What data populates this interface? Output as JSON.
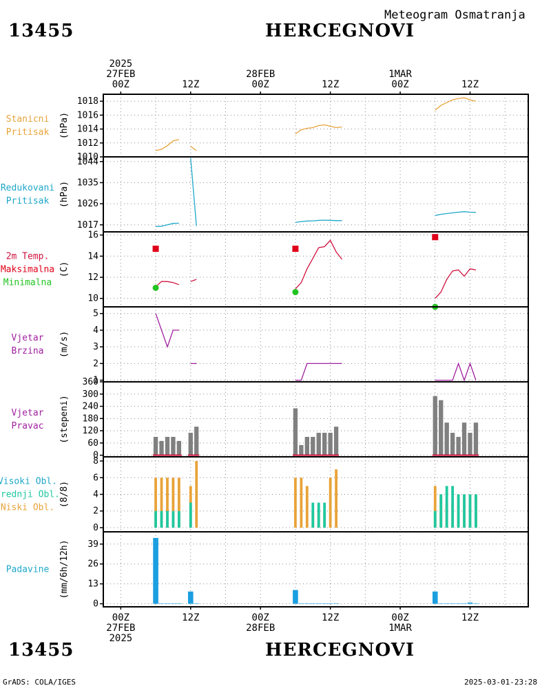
{
  "header": {
    "station_id": "13455",
    "station_name": "HERCEGNOVI",
    "product": "Meteogram Osmatranja"
  },
  "footer": {
    "left": "GrADS: COLA/IGES",
    "right": "2025-03-01-23:28"
  },
  "time_axis": {
    "labels_top": [
      {
        "h": 0,
        "lines": [
          "2025",
          "27FEB",
          "00Z"
        ]
      },
      {
        "h": 12,
        "lines": [
          "12Z"
        ]
      },
      {
        "h": 24,
        "lines": [
          "28FEB",
          "00Z"
        ]
      },
      {
        "h": 36,
        "lines": [
          "12Z"
        ]
      },
      {
        "h": 48,
        "lines": [
          "1MAR",
          "00Z"
        ]
      },
      {
        "h": 60,
        "lines": [
          "12Z"
        ]
      }
    ],
    "labels_bottom": [
      {
        "h": 0,
        "lines": [
          "00Z",
          "27FEB",
          "2025"
        ]
      },
      {
        "h": 12,
        "lines": [
          "12Z"
        ]
      },
      {
        "h": 24,
        "lines": [
          "00Z",
          "28FEB"
        ]
      },
      {
        "h": 36,
        "lines": [
          "12Z"
        ]
      },
      {
        "h": 48,
        "lines": [
          "00Z",
          "1MAR"
        ]
      },
      {
        "h": 60,
        "lines": [
          "12Z"
        ]
      }
    ],
    "range_hours": [
      -3,
      70
    ]
  },
  "chart_data": [
    {
      "type": "line",
      "title_lines": [
        "Stanicni",
        "Pritisak"
      ],
      "title_colors": [
        "#e8a33a",
        "#e8a33a"
      ],
      "ylabel": "(hPa)",
      "ylim": [
        1010,
        1019
      ],
      "yticks": [
        1010,
        1012,
        1014,
        1016,
        1018
      ],
      "series": [
        {
          "color": "#e8a33a",
          "segments": [
            [
              [
                6,
                1010.9
              ],
              [
                7,
                1011.1
              ],
              [
                8,
                1011.6
              ],
              [
                9,
                1012.3
              ],
              [
                10,
                1012.5
              ]
            ],
            [
              [
                12,
                1011.5
              ],
              [
                13,
                1010.9
              ]
            ],
            [
              [
                30,
                1013.3
              ],
              [
                31,
                1013.9
              ],
              [
                32,
                1014.1
              ],
              [
                33,
                1014.2
              ],
              [
                34,
                1014.5
              ],
              [
                35,
                1014.6
              ],
              [
                36,
                1014.4
              ],
              [
                37,
                1014.2
              ],
              [
                38,
                1014.3
              ]
            ],
            [
              [
                54,
                1016.7
              ],
              [
                55,
                1017.4
              ],
              [
                56,
                1017.8
              ],
              [
                57,
                1018.2
              ],
              [
                58,
                1018.4
              ],
              [
                59,
                1018.5
              ],
              [
                60,
                1018.2
              ],
              [
                61,
                1018.0
              ]
            ]
          ]
        }
      ]
    },
    {
      "type": "line",
      "title_lines": [
        "Redukovani",
        "Pritisak"
      ],
      "title_colors": [
        "#1ea7c9",
        "#1ea7c9"
      ],
      "ylabel": "(hPa)",
      "ylim": [
        1014,
        1046
      ],
      "yticks": [
        1017,
        1026,
        1035,
        1044
      ],
      "series": [
        {
          "color": "#1ea7c9",
          "segments": [
            [
              [
                6,
                1016.3
              ],
              [
                7,
                1016.4
              ],
              [
                8,
                1017.0
              ],
              [
                9,
                1017.6
              ],
              [
                10,
                1017.7
              ]
            ],
            [
              [
                12,
                1045.5
              ],
              [
                13,
                1016.5
              ]
            ],
            [
              [
                30,
                1018.0
              ],
              [
                31,
                1018.4
              ],
              [
                32,
                1018.6
              ],
              [
                33,
                1018.7
              ],
              [
                34,
                1018.9
              ],
              [
                35,
                1019.0
              ],
              [
                36,
                1018.9
              ],
              [
                37,
                1018.8
              ],
              [
                38,
                1018.8
              ]
            ],
            [
              [
                54,
                1021.0
              ],
              [
                55,
                1021.5
              ],
              [
                56,
                1021.8
              ],
              [
                57,
                1022.1
              ],
              [
                58,
                1022.4
              ],
              [
                59,
                1022.6
              ],
              [
                60,
                1022.4
              ],
              [
                61,
                1022.3
              ]
            ]
          ]
        }
      ]
    },
    {
      "type": "line",
      "title_lines": [
        "2m Temp.",
        "Maksimalna",
        "Minimalna"
      ],
      "title_colors": [
        "#d0113f",
        "#e0001a",
        "#22c322"
      ],
      "ylabel": "(C)",
      "ylim": [
        9.2,
        16.3
      ],
      "yticks": [
        10,
        12,
        14,
        16
      ],
      "series": [
        {
          "color": "#d0113f",
          "segments": [
            [
              [
                6,
                11.1
              ],
              [
                7,
                11.6
              ],
              [
                8,
                11.6
              ],
              [
                9,
                11.5
              ],
              [
                10,
                11.3
              ]
            ],
            [
              [
                12,
                11.6
              ],
              [
                13,
                11.8
              ]
            ],
            [
              [
                30,
                10.9
              ],
              [
                31,
                11.5
              ],
              [
                32,
                12.8
              ],
              [
                33,
                13.8
              ],
              [
                34,
                14.8
              ],
              [
                35,
                14.9
              ],
              [
                36,
                15.5
              ],
              [
                37,
                14.4
              ],
              [
                38,
                13.7
              ]
            ],
            [
              [
                54,
                10.0
              ],
              [
                55,
                10.6
              ],
              [
                56,
                11.8
              ],
              [
                57,
                12.6
              ],
              [
                58,
                12.7
              ],
              [
                59,
                12.1
              ],
              [
                60,
                12.8
              ],
              [
                61,
                12.7
              ]
            ]
          ]
        }
      ],
      "markers": [
        {
          "shape": "square",
          "color": "#e0001a",
          "points": [
            [
              6,
              14.7
            ],
            [
              30,
              14.7
            ],
            [
              54,
              15.8
            ]
          ]
        },
        {
          "shape": "circle",
          "color": "#22c322",
          "points": [
            [
              6,
              11.0
            ],
            [
              30,
              10.6
            ],
            [
              54,
              9.2
            ]
          ]
        }
      ]
    },
    {
      "type": "line",
      "title_lines": [
        "Vjetar",
        "Brzina"
      ],
      "title_colors": [
        "#a020a0",
        "#a020a0"
      ],
      "ylabel": "(m/s)",
      "ylim": [
        0.9,
        5.4
      ],
      "yticks": [
        1,
        2,
        3,
        4,
        5
      ],
      "series": [
        {
          "color": "#a020a0",
          "segments": [
            [
              [
                6,
                5
              ],
              [
                8,
                3
              ],
              [
                9,
                4
              ],
              [
                10,
                4
              ]
            ],
            [
              [
                12,
                2
              ],
              [
                13,
                2
              ]
            ],
            [
              [
                30,
                1
              ],
              [
                31,
                1
              ],
              [
                32,
                2
              ],
              [
                33,
                2
              ],
              [
                34,
                2
              ],
              [
                35,
                2
              ],
              [
                36,
                2
              ],
              [
                37,
                2
              ],
              [
                38,
                2
              ]
            ],
            [
              [
                54,
                1
              ],
              [
                55,
                1
              ],
              [
                56,
                1
              ],
              [
                57,
                1
              ],
              [
                58,
                2
              ],
              [
                59,
                1
              ],
              [
                60,
                2
              ],
              [
                61,
                1
              ]
            ]
          ]
        }
      ]
    },
    {
      "type": "bar",
      "title_lines": [
        "Vjetar",
        "Pravac"
      ],
      "title_colors": [
        "#a020a0",
        "#a020a0"
      ],
      "ylabel": "(stepeni)",
      "ylim": [
        -8,
        360
      ],
      "yticks": [
        0,
        60,
        120,
        180,
        240,
        300,
        360
      ],
      "bar_width_hours": 0.75,
      "series": [
        {
          "color": "#808080",
          "points": [
            [
              6,
              90
            ],
            [
              7,
              70
            ],
            [
              8,
              90
            ],
            [
              9,
              90
            ],
            [
              10,
              70
            ],
            [
              12,
              110
            ],
            [
              13,
              140
            ],
            [
              30,
              230
            ],
            [
              31,
              50
            ],
            [
              32,
              90
            ],
            [
              33,
              90
            ],
            [
              34,
              110
            ],
            [
              35,
              110
            ],
            [
              36,
              110
            ],
            [
              37,
              140
            ],
            [
              54,
              290
            ],
            [
              55,
              270
            ],
            [
              56,
              160
            ],
            [
              57,
              110
            ],
            [
              58,
              90
            ],
            [
              59,
              160
            ],
            [
              60,
              110
            ],
            [
              61,
              160
            ]
          ]
        }
      ],
      "baselines": [
        {
          "color": "#d0113f",
          "value": 0,
          "ranges": [
            [
              6,
              10
            ],
            [
              12,
              13
            ],
            [
              30,
              37
            ],
            [
              54,
              61
            ]
          ]
        }
      ]
    },
    {
      "type": "bar",
      "title_lines": [
        "Visoki Obl.",
        "Srednji Obl.",
        "Niski Obl."
      ],
      "title_colors": [
        "#1ea7c9",
        "#20c8a0",
        "#e8a33a"
      ],
      "ylabel": "(8/8)",
      "ylim": [
        -0.5,
        8.5
      ],
      "yticks": [
        0,
        2,
        4,
        6,
        8
      ],
      "bar_width_hours": 0.45,
      "stacked_layers": [
        {
          "name": "Niski Obl.",
          "color": "#e8a33a",
          "points": [
            [
              6,
              6
            ],
            [
              7,
              6
            ],
            [
              8,
              6
            ],
            [
              9,
              6
            ],
            [
              10,
              6
            ],
            [
              12,
              5
            ],
            [
              13,
              8
            ],
            [
              30,
              6
            ],
            [
              31,
              6
            ],
            [
              32,
              5
            ],
            [
              33,
              2
            ],
            [
              34,
              2
            ],
            [
              35,
              2
            ],
            [
              36,
              6
            ],
            [
              37,
              7
            ],
            [
              54,
              5
            ],
            [
              55,
              4
            ],
            [
              56,
              3
            ],
            [
              57,
              3
            ],
            [
              58,
              4
            ],
            [
              59,
              4
            ],
            [
              60,
              4
            ],
            [
              61,
              4
            ]
          ]
        },
        {
          "name": "Srednji Obl.",
          "color": "#20c8a0",
          "points": [
            [
              6,
              2
            ],
            [
              7,
              2
            ],
            [
              8,
              2
            ],
            [
              9,
              2
            ],
            [
              10,
              2
            ],
            [
              12,
              3
            ],
            [
              13,
              0
            ],
            [
              30,
              0
            ],
            [
              31,
              0
            ],
            [
              32,
              0
            ],
            [
              33,
              3
            ],
            [
              34,
              3
            ],
            [
              35,
              3
            ],
            [
              36,
              0
            ],
            [
              37,
              0
            ],
            [
              54,
              2
            ],
            [
              55,
              4
            ],
            [
              56,
              5
            ],
            [
              57,
              5
            ],
            [
              58,
              4
            ],
            [
              59,
              4
            ],
            [
              60,
              4
            ],
            [
              61,
              4
            ]
          ]
        }
      ]
    },
    {
      "type": "bar",
      "title_lines": [
        "Padavine"
      ],
      "title_colors": [
        "#1ea7c9"
      ],
      "ylabel": "(mm/6h/12h)",
      "ylim": [
        -2,
        47
      ],
      "yticks": [
        0,
        13,
        26,
        39
      ],
      "bar_width_hours": 0.9,
      "series": [
        {
          "color": "#1a9fe0",
          "points": [
            [
              6,
              43
            ],
            [
              7,
              0.3
            ],
            [
              8,
              0.3
            ],
            [
              9,
              0.3
            ],
            [
              10,
              0.3
            ],
            [
              12,
              8
            ],
            [
              13,
              0.3
            ],
            [
              30,
              9
            ],
            [
              31,
              0.3
            ],
            [
              32,
              0.3
            ],
            [
              33,
              0.3
            ],
            [
              34,
              0.3
            ],
            [
              35,
              0.3
            ],
            [
              36,
              0.3
            ],
            [
              37,
              0.3
            ],
            [
              54,
              8
            ],
            [
              55,
              0.3
            ],
            [
              56,
              0.3
            ],
            [
              57,
              0.3
            ],
            [
              58,
              0.3
            ],
            [
              59,
              0.3
            ],
            [
              60,
              0.8
            ],
            [
              61,
              0.3
            ]
          ]
        }
      ]
    }
  ]
}
